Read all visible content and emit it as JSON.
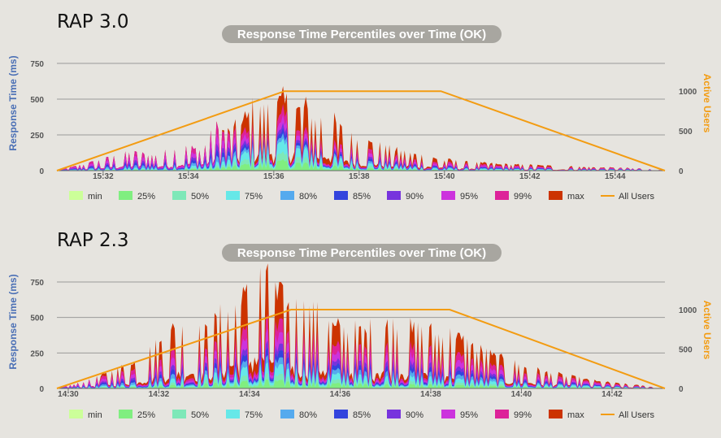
{
  "chart_data": [
    {
      "type": "area",
      "heading": "RAP 3.0",
      "title": "Response Time Percentiles over Time (OK)",
      "ylabel": "Response Time (ms)",
      "y2label": "Active Users",
      "ylim": [
        0,
        750
      ],
      "y2lim": [
        0,
        1350
      ],
      "yticks": [
        0,
        250,
        500,
        750
      ],
      "y2ticks": [
        0,
        500,
        1000
      ],
      "xlim": [
        "15:30:55",
        "15:45:10"
      ],
      "xticks": [
        "15:32",
        "15:34",
        "15:36",
        "15:38",
        "15:40",
        "15:42",
        "15:44"
      ],
      "legend": [
        {
          "name": "min",
          "color": "#ccff99"
        },
        {
          "name": "25%",
          "color": "#80ee80"
        },
        {
          "name": "50%",
          "color": "#7ee8b8"
        },
        {
          "name": "75%",
          "color": "#66e8e8"
        },
        {
          "name": "80%",
          "color": "#55aaee"
        },
        {
          "name": "85%",
          "color": "#3344dd"
        },
        {
          "name": "90%",
          "color": "#7733dd"
        },
        {
          "name": "95%",
          "color": "#cc33dd"
        },
        {
          "name": "99%",
          "color": "#dd2299"
        },
        {
          "name": "max",
          "color": "#cc3300"
        },
        {
          "name": "All Users",
          "color": "#f39c12",
          "line": true
        }
      ],
      "active_users": {
        "x": [
          "15:30:55",
          "15:36:15",
          "15:39:55",
          "15:45:10"
        ],
        "y": [
          0,
          1000,
          1000,
          0
        ]
      },
      "series_peaks": {
        "x": [
          "15:32:40",
          "15:33:15",
          "15:33:50",
          "15:34:20",
          "15:34:40",
          "15:35:00",
          "15:35:15",
          "15:35:30",
          "15:35:45",
          "15:36:00",
          "15:36:15",
          "15:36:30",
          "15:36:45",
          "15:37:00",
          "15:37:15",
          "15:37:30",
          "15:37:45",
          "15:38:00",
          "15:38:20",
          "15:38:40",
          "15:39:00",
          "15:39:30",
          "15:40:00",
          "15:40:30",
          "15:41:30",
          "15:42:30",
          "15:43:30",
          "15:44:40"
        ],
        "p99": [
          130,
          110,
          170,
          160,
          320,
          250,
          280,
          300,
          250,
          320,
          420,
          300,
          280,
          240,
          220,
          180,
          170,
          160,
          150,
          110,
          100,
          70,
          60,
          45,
          35,
          25,
          20,
          15
        ],
        "max": [
          130,
          110,
          170,
          160,
          320,
          280,
          360,
          460,
          430,
          480,
          520,
          460,
          470,
          360,
          420,
          330,
          250,
          230,
          200,
          160,
          140,
          110,
          80,
          60,
          45,
          35,
          25,
          15
        ],
        "p75": [
          20,
          20,
          30,
          40,
          60,
          80,
          120,
          150,
          160,
          180,
          200,
          170,
          150,
          120,
          100,
          90,
          70,
          60,
          50,
          40,
          30,
          20,
          15,
          12,
          10,
          8,
          6,
          5
        ]
      }
    },
    {
      "type": "area",
      "heading": "RAP 2.3",
      "title": "Response Time Percentiles over Time (OK)",
      "ylabel": "Response Time (ms)",
      "y2label": "Active Users",
      "ylim": [
        0,
        750
      ],
      "y2lim": [
        0,
        1350
      ],
      "yticks": [
        0,
        250,
        500,
        750
      ],
      "y2ticks": [
        0,
        500,
        1000
      ],
      "xlim": [
        "14:29:45",
        "14:43:10"
      ],
      "xticks": [
        "14:30",
        "14:32",
        "14:34",
        "14:36",
        "14:38",
        "14:40",
        "14:42"
      ],
      "legend": [
        {
          "name": "min",
          "color": "#ccff99"
        },
        {
          "name": "25%",
          "color": "#80ee80"
        },
        {
          "name": "50%",
          "color": "#7ee8b8"
        },
        {
          "name": "75%",
          "color": "#66e8e8"
        },
        {
          "name": "80%",
          "color": "#55aaee"
        },
        {
          "name": "85%",
          "color": "#3344dd"
        },
        {
          "name": "90%",
          "color": "#7733dd"
        },
        {
          "name": "95%",
          "color": "#cc33dd"
        },
        {
          "name": "99%",
          "color": "#dd2299"
        },
        {
          "name": "max",
          "color": "#cc3300"
        },
        {
          "name": "All Users",
          "color": "#f39c12",
          "line": true
        }
      ],
      "active_users": {
        "x": [
          "14:29:45",
          "14:34:55",
          "14:38:25",
          "14:43:10"
        ],
        "y": [
          0,
          1000,
          1000,
          0
        ]
      },
      "series_peaks": {
        "x": [
          "14:30:30",
          "14:31:00",
          "14:31:30",
          "14:32:00",
          "14:32:20",
          "14:32:40",
          "14:33:00",
          "14:33:20",
          "14:33:40",
          "14:34:00",
          "14:34:15",
          "14:34:30",
          "14:34:45",
          "14:35:00",
          "14:35:20",
          "14:35:40",
          "14:36:00",
          "14:36:30",
          "14:37:00",
          "14:37:30",
          "14:38:00",
          "14:38:30",
          "14:39:00",
          "14:39:30",
          "14:40:00",
          "14:40:30",
          "14:41:00",
          "14:41:30",
          "14:42:00",
          "14:42:40"
        ],
        "p99": [
          60,
          100,
          150,
          200,
          280,
          300,
          250,
          330,
          380,
          420,
          460,
          470,
          430,
          400,
          380,
          330,
          300,
          300,
          320,
          300,
          280,
          260,
          200,
          150,
          120,
          90,
          70,
          50,
          30,
          15
        ],
        "max": [
          60,
          130,
          200,
          330,
          450,
          420,
          400,
          520,
          620,
          700,
          830,
          750,
          640,
          600,
          580,
          500,
          440,
          420,
          480,
          440,
          420,
          400,
          300,
          220,
          170,
          120,
          90,
          60,
          40,
          20
        ],
        "p75": [
          10,
          20,
          30,
          50,
          70,
          80,
          90,
          110,
          130,
          150,
          170,
          160,
          150,
          140,
          120,
          110,
          100,
          95,
          90,
          85,
          80,
          70,
          60,
          45,
          35,
          25,
          20,
          15,
          10,
          5
        ]
      }
    }
  ]
}
